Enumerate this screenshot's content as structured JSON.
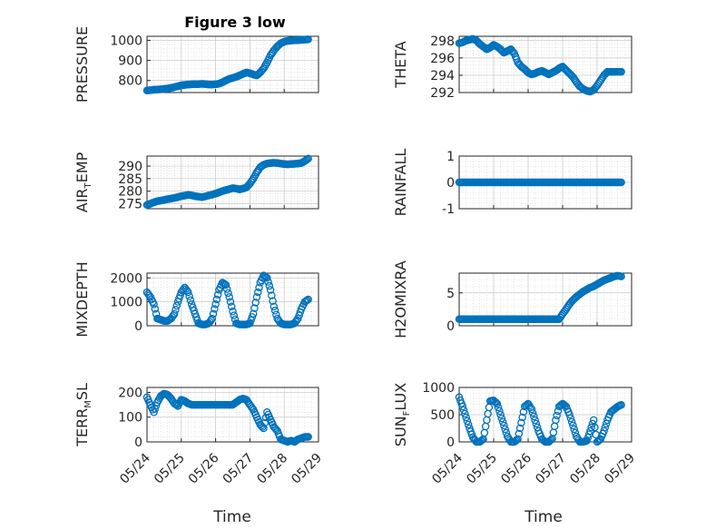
{
  "figure": {
    "title": "Figure 3 low",
    "xlabel": "Time"
  },
  "marker_color": "#0072BD",
  "x_ticks": [
    "05/24",
    "05/25",
    "05/26",
    "05/27",
    "05/28",
    "05/29"
  ],
  "chart_data": [
    {
      "type": "scatter",
      "position": "row1-left",
      "ylabel": "PRESSURE",
      "ylabel_sub": "",
      "xlim": [
        0,
        5
      ],
      "ylim": [
        740,
        1020
      ],
      "yticks": [
        800,
        900,
        1000
      ],
      "series": [
        {
          "x": [
            0.0,
            0.1,
            0.2,
            0.3,
            0.4,
            0.5,
            0.6,
            0.7,
            0.8,
            0.9,
            1.0,
            1.1,
            1.2,
            1.3,
            1.4,
            1.5,
            1.6,
            1.7,
            1.8,
            1.9,
            2.0,
            2.1,
            2.2,
            2.3,
            2.4,
            2.5,
            2.6,
            2.7,
            2.8,
            2.9,
            3.0,
            3.1,
            3.2,
            3.3,
            3.4,
            3.5,
            3.6,
            3.7,
            3.8,
            3.9,
            4.0,
            4.1,
            4.2,
            4.3,
            4.4,
            4.5,
            4.6,
            4.7
          ],
          "y": [
            750,
            752,
            754,
            755,
            756,
            758,
            760,
            763,
            767,
            771,
            776,
            778,
            780,
            781,
            782,
            782,
            783,
            782,
            780,
            780,
            781,
            784,
            791,
            800,
            808,
            813,
            818,
            825,
            833,
            840,
            836,
            830,
            825,
            840,
            860,
            890,
            925,
            950,
            970,
            985,
            993,
            997,
            999,
            1000,
            1001,
            1002,
            1003,
            1005
          ]
        }
      ]
    },
    {
      "type": "scatter",
      "position": "row1-right",
      "ylabel": "THETA",
      "ylabel_sub": "",
      "xlim": [
        0,
        5
      ],
      "ylim": [
        292,
        298.5
      ],
      "yticks": [
        292,
        294,
        296,
        298
      ],
      "series": [
        {
          "x": [
            0.0,
            0.1,
            0.2,
            0.3,
            0.4,
            0.5,
            0.6,
            0.7,
            0.8,
            0.9,
            1.0,
            1.1,
            1.2,
            1.3,
            1.4,
            1.5,
            1.6,
            1.7,
            1.8,
            1.9,
            2.0,
            2.1,
            2.2,
            2.3,
            2.4,
            2.5,
            2.6,
            2.7,
            2.8,
            2.9,
            3.0,
            3.1,
            3.2,
            3.3,
            3.4,
            3.5,
            3.6,
            3.7,
            3.8,
            3.9,
            4.0,
            4.1,
            4.2,
            4.3,
            4.4,
            4.5,
            4.6,
            4.7
          ],
          "y": [
            297.7,
            297.8,
            298.0,
            298.1,
            298.2,
            298.0,
            297.6,
            297.3,
            297.0,
            297.2,
            297.5,
            297.3,
            297.0,
            296.6,
            296.8,
            297.0,
            296.5,
            295.5,
            295.0,
            294.7,
            294.3,
            294.1,
            294.2,
            294.4,
            294.5,
            294.3,
            294.1,
            294.3,
            294.5,
            294.8,
            295.0,
            294.6,
            294.2,
            293.8,
            293.2,
            292.7,
            292.4,
            292.2,
            292.1,
            292.3,
            292.8,
            293.4,
            294.0,
            294.4,
            294.4,
            294.4,
            294.4,
            294.4
          ]
        }
      ]
    },
    {
      "type": "scatter",
      "position": "row2-left",
      "ylabel": "AIR",
      "ylabel_sub": "T",
      "ylabel_suffix": "EMP",
      "xlim": [
        0,
        5
      ],
      "ylim": [
        273,
        294
      ],
      "yticks": [
        275,
        280,
        285,
        290
      ],
      "series": [
        {
          "x": [
            0.0,
            0.1,
            0.2,
            0.3,
            0.4,
            0.5,
            0.6,
            0.7,
            0.8,
            0.9,
            1.0,
            1.1,
            1.2,
            1.3,
            1.4,
            1.5,
            1.6,
            1.7,
            1.8,
            1.9,
            2.0,
            2.1,
            2.2,
            2.3,
            2.4,
            2.5,
            2.6,
            2.7,
            2.8,
            2.9,
            3.0,
            3.1,
            3.2,
            3.3,
            3.4,
            3.5,
            3.6,
            3.7,
            3.8,
            3.9,
            4.0,
            4.1,
            4.2,
            4.3,
            4.4,
            4.5,
            4.6,
            4.7
          ],
          "y": [
            274.5,
            275.0,
            275.5,
            276.0,
            276.2,
            276.5,
            276.8,
            277.0,
            277.3,
            277.6,
            278.0,
            278.2,
            278.5,
            278.3,
            278.0,
            277.8,
            277.6,
            277.9,
            278.3,
            278.6,
            279.0,
            279.5,
            280.0,
            280.4,
            280.8,
            281.2,
            281.0,
            280.7,
            281.0,
            281.5,
            283.0,
            285.0,
            287.5,
            289.5,
            290.5,
            291.0,
            291.2,
            291.3,
            291.2,
            291.0,
            290.8,
            290.7,
            290.8,
            290.9,
            291.0,
            291.2,
            292.0,
            293.0
          ]
        }
      ]
    },
    {
      "type": "scatter",
      "position": "row2-right",
      "ylabel": "RAINFALL",
      "ylabel_sub": "",
      "xlim": [
        0,
        5
      ],
      "ylim": [
        -1,
        1
      ],
      "yticks": [
        -1,
        0,
        1
      ],
      "series": [
        {
          "x": [
            0.0,
            0.1,
            0.2,
            0.3,
            0.4,
            0.5,
            0.6,
            0.7,
            0.8,
            0.9,
            1.0,
            1.1,
            1.2,
            1.3,
            1.4,
            1.5,
            1.6,
            1.7,
            1.8,
            1.9,
            2.0,
            2.1,
            2.2,
            2.3,
            2.4,
            2.5,
            2.6,
            2.7,
            2.8,
            2.9,
            3.0,
            3.1,
            3.2,
            3.3,
            3.4,
            3.5,
            3.6,
            3.7,
            3.8,
            3.9,
            4.0,
            4.1,
            4.2,
            4.3,
            4.4,
            4.5,
            4.6,
            4.7
          ],
          "y": [
            0,
            0,
            0,
            0,
            0,
            0,
            0,
            0,
            0,
            0,
            0,
            0,
            0,
            0,
            0,
            0,
            0,
            0,
            0,
            0,
            0,
            0,
            0,
            0,
            0,
            0,
            0,
            0,
            0,
            0,
            0,
            0,
            0,
            0,
            0,
            0,
            0,
            0,
            0,
            0,
            0,
            0,
            0,
            0,
            0,
            0,
            0,
            0
          ]
        }
      ]
    },
    {
      "type": "scatter",
      "position": "row3-left",
      "ylabel": "MIXDEPTH",
      "ylabel_sub": "",
      "xlim": [
        0,
        5
      ],
      "ylim": [
        0,
        2200
      ],
      "yticks": [
        0,
        1000,
        2000
      ],
      "series": [
        {
          "x": [
            0.0,
            0.1,
            0.2,
            0.3,
            0.4,
            0.5,
            0.6,
            0.7,
            0.8,
            0.9,
            1.0,
            1.1,
            1.2,
            1.3,
            1.4,
            1.5,
            1.6,
            1.7,
            1.8,
            1.9,
            2.0,
            2.1,
            2.2,
            2.3,
            2.4,
            2.5,
            2.6,
            2.7,
            2.8,
            2.9,
            3.0,
            3.1,
            3.2,
            3.3,
            3.4,
            3.5,
            3.6,
            3.7,
            3.8,
            3.9,
            4.0,
            4.1,
            4.2,
            4.3,
            4.4,
            4.5,
            4.6,
            4.7
          ],
          "y": [
            1400,
            1200,
            900,
            300,
            250,
            200,
            200,
            300,
            500,
            1000,
            1400,
            1600,
            1400,
            900,
            500,
            100,
            50,
            50,
            100,
            300,
            900,
            1500,
            1800,
            1700,
            1200,
            600,
            100,
            50,
            50,
            50,
            100,
            500,
            1200,
            1800,
            2100,
            2000,
            1500,
            800,
            300,
            100,
            50,
            50,
            50,
            100,
            300,
            700,
            1000,
            1100
          ]
        }
      ]
    },
    {
      "type": "scatter",
      "position": "row3-right",
      "ylabel": "H2OMIXRA",
      "ylabel_sub": "",
      "xlim": [
        0,
        5
      ],
      "ylim": [
        0,
        8
      ],
      "yticks": [
        0,
        5
      ],
      "series": [
        {
          "x": [
            0.0,
            0.1,
            0.2,
            0.3,
            0.4,
            0.5,
            0.6,
            0.7,
            0.8,
            0.9,
            1.0,
            1.1,
            1.2,
            1.3,
            1.4,
            1.5,
            1.6,
            1.7,
            1.8,
            1.9,
            2.0,
            2.1,
            2.2,
            2.3,
            2.4,
            2.5,
            2.6,
            2.7,
            2.8,
            2.9,
            3.0,
            3.1,
            3.2,
            3.3,
            3.4,
            3.5,
            3.6,
            3.7,
            3.8,
            3.9,
            4.0,
            4.1,
            4.2,
            4.3,
            4.4,
            4.5,
            4.6,
            4.7
          ],
          "y": [
            1.0,
            1.0,
            1.0,
            1.0,
            1.0,
            1.0,
            1.0,
            1.0,
            1.0,
            1.0,
            1.0,
            1.0,
            1.0,
            1.0,
            1.0,
            1.0,
            1.0,
            1.0,
            1.0,
            1.0,
            1.0,
            1.0,
            1.0,
            1.0,
            1.0,
            1.0,
            1.0,
            1.0,
            1.0,
            1.0,
            1.8,
            2.5,
            3.3,
            3.9,
            4.4,
            4.8,
            5.2,
            5.5,
            5.8,
            6.0,
            6.3,
            6.6,
            6.9,
            7.1,
            7.3,
            7.5,
            7.6,
            7.5
          ]
        }
      ]
    },
    {
      "type": "scatter",
      "position": "row4-left",
      "ylabel": "TERR",
      "ylabel_sub": "M",
      "ylabel_suffix": "SL",
      "xlim": [
        0,
        5
      ],
      "ylim": [
        0,
        220
      ],
      "yticks": [
        0,
        100,
        200
      ],
      "series": [
        {
          "x": [
            0.0,
            0.1,
            0.2,
            0.3,
            0.4,
            0.5,
            0.6,
            0.7,
            0.8,
            0.9,
            1.0,
            1.1,
            1.2,
            1.3,
            1.4,
            1.5,
            1.6,
            1.7,
            1.8,
            1.9,
            2.0,
            2.1,
            2.2,
            2.3,
            2.4,
            2.5,
            2.6,
            2.7,
            2.8,
            2.9,
            3.0,
            3.1,
            3.2,
            3.3,
            3.4,
            3.5,
            3.6,
            3.7,
            3.8,
            3.9,
            4.0,
            4.1,
            4.2,
            4.3,
            4.4,
            4.5,
            4.6,
            4.7
          ],
          "y": [
            180,
            150,
            120,
            160,
            185,
            195,
            190,
            175,
            155,
            145,
            170,
            165,
            155,
            150,
            150,
            150,
            150,
            150,
            150,
            150,
            150,
            150,
            150,
            150,
            150,
            150,
            160,
            170,
            175,
            170,
            150,
            130,
            100,
            70,
            55,
            120,
            90,
            60,
            45,
            10,
            5,
            0,
            5,
            0,
            10,
            15,
            20,
            20
          ]
        }
      ]
    },
    {
      "type": "scatter",
      "position": "row4-right",
      "ylabel": "SUN",
      "ylabel_sub": "F",
      "ylabel_suffix": "LUX",
      "xlim": [
        0,
        5
      ],
      "ylim": [
        0,
        1000
      ],
      "yticks": [
        0,
        500,
        1000
      ],
      "series": [
        {
          "x": [
            0.0,
            0.1,
            0.2,
            0.3,
            0.4,
            0.5,
            0.6,
            0.7,
            0.8,
            0.9,
            1.0,
            1.1,
            1.2,
            1.3,
            1.4,
            1.5,
            1.6,
            1.7,
            1.8,
            1.9,
            2.0,
            2.1,
            2.2,
            2.3,
            2.4,
            2.5,
            2.6,
            2.7,
            2.8,
            2.9,
            3.0,
            3.1,
            3.2,
            3.3,
            3.4,
            3.5,
            3.6,
            3.7,
            3.8,
            3.9,
            4.0,
            4.1,
            4.2,
            4.3,
            4.4,
            4.5,
            4.6,
            4.7
          ],
          "y": [
            820,
            650,
            450,
            250,
            80,
            0,
            0,
            50,
            400,
            750,
            760,
            700,
            500,
            300,
            100,
            0,
            0,
            50,
            350,
            650,
            700,
            600,
            400,
            200,
            50,
            0,
            0,
            60,
            400,
            650,
            700,
            650,
            500,
            300,
            100,
            0,
            0,
            20,
            200,
            400,
            0,
            50,
            200,
            400,
            550,
            600,
            650,
            680
          ]
        }
      ]
    }
  ]
}
